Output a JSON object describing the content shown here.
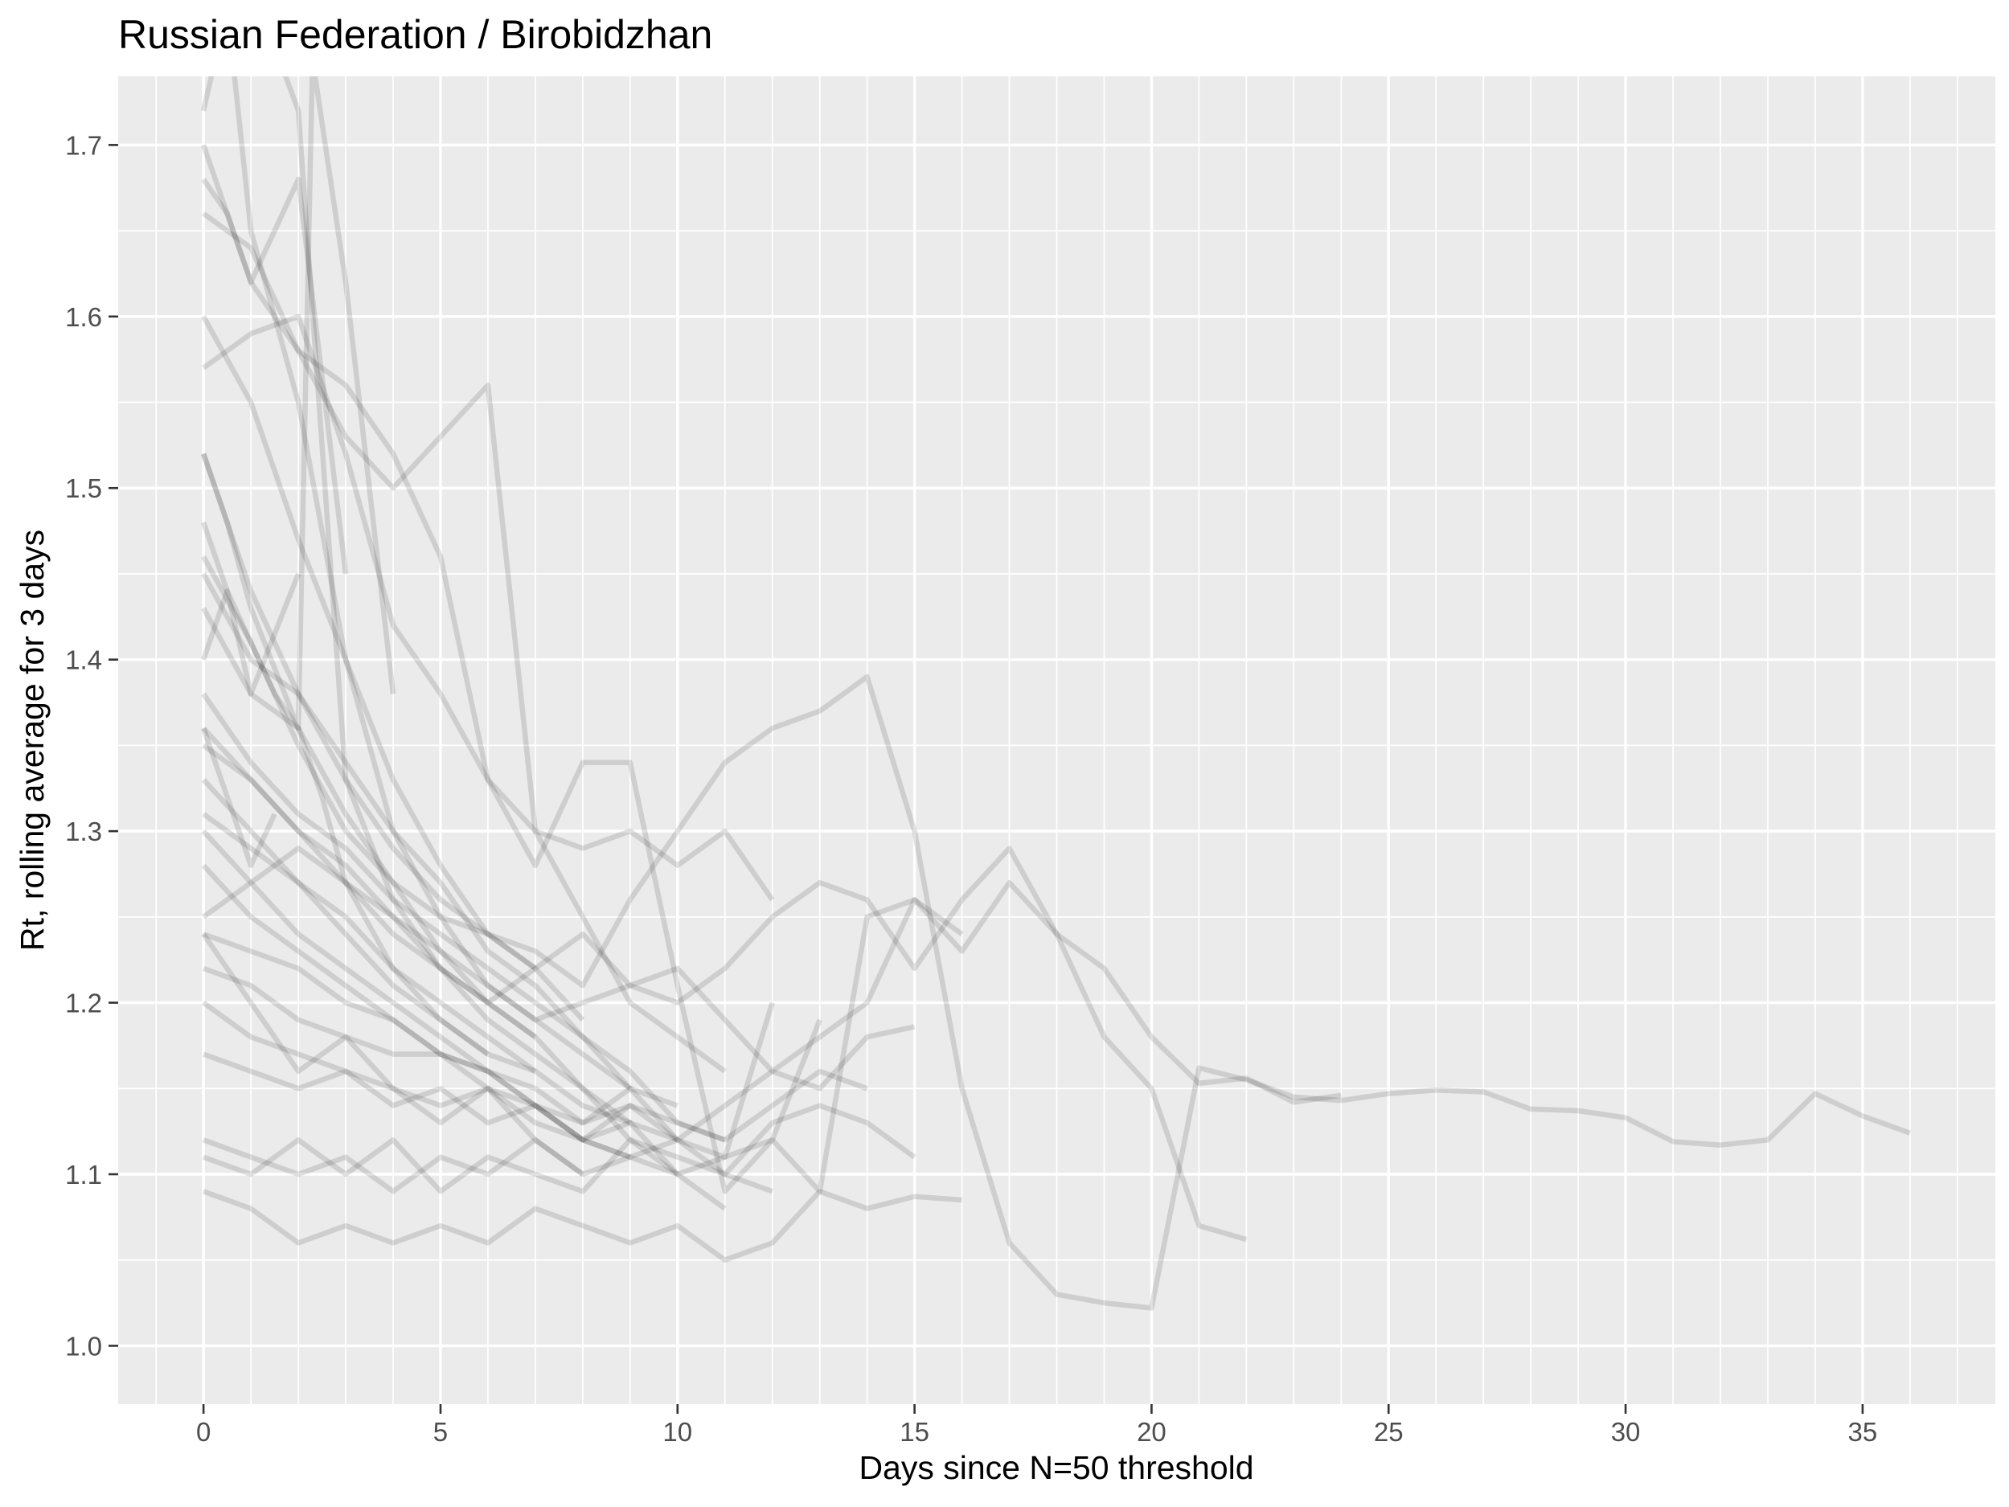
{
  "chart_data": {
    "type": "line",
    "title": "Russian Federation / Birobidzhan",
    "xlabel": "Days since N=50 threshold",
    "ylabel": "Rt, rolling average for 3 days",
    "xlim": [
      -1.8,
      37.8
    ],
    "ylim": [
      0.966,
      1.74
    ],
    "x_ticks": [
      0,
      5,
      10,
      15,
      20,
      25,
      30,
      35
    ],
    "y_ticks": [
      1.0,
      1.1,
      1.2,
      1.3,
      1.4,
      1.5,
      1.6,
      1.7
    ],
    "grid": true,
    "legend": "none",
    "line_color": "#000000",
    "panel_color": "#ebebeb",
    "series": [
      {
        "x": [
          0,
          1,
          2,
          3,
          4,
          5,
          6,
          7,
          8,
          9,
          10,
          11,
          12,
          13,
          14,
          15,
          16,
          17,
          18,
          19,
          20,
          21,
          22,
          23,
          24,
          25,
          26,
          27,
          28,
          29,
          30,
          31,
          32,
          33,
          34,
          35,
          36
        ],
        "y": [
          1.46,
          1.41,
          1.35,
          1.3,
          1.27,
          1.25,
          1.24,
          1.23,
          1.21,
          1.26,
          1.3,
          1.34,
          1.36,
          1.37,
          1.39,
          1.3,
          1.15,
          1.06,
          1.03,
          1.025,
          1.022,
          1.162,
          1.155,
          1.145,
          1.143,
          1.147,
          1.149,
          1.148,
          1.138,
          1.137,
          1.133,
          1.119,
          1.117,
          1.12,
          1.147,
          1.134,
          1.124
        ]
      },
      {
        "x": [
          0,
          1,
          2,
          3,
          4,
          5,
          6,
          7,
          8,
          9,
          10,
          11,
          12,
          13,
          14,
          15,
          16,
          17,
          18,
          19,
          20,
          21,
          22,
          23,
          24
        ],
        "y": [
          1.25,
          1.27,
          1.29,
          1.27,
          1.24,
          1.22,
          1.2,
          1.22,
          1.24,
          1.21,
          1.2,
          1.22,
          1.25,
          1.27,
          1.26,
          1.22,
          1.26,
          1.29,
          1.24,
          1.22,
          1.18,
          1.153,
          1.156,
          1.142,
          1.146
        ]
      },
      {
        "x": [
          0,
          1,
          2,
          3,
          4,
          5,
          6,
          7,
          8,
          9,
          10,
          11,
          12,
          13,
          14,
          15,
          16,
          17,
          18,
          19,
          20,
          21,
          22
        ],
        "y": [
          1.36,
          1.33,
          1.3,
          1.28,
          1.25,
          1.23,
          1.21,
          1.19,
          1.2,
          1.21,
          1.22,
          1.19,
          1.16,
          1.18,
          1.2,
          1.26,
          1.23,
          1.27,
          1.24,
          1.18,
          1.15,
          1.07,
          1.062
        ]
      },
      {
        "x": [
          0,
          1,
          2,
          3,
          4,
          5,
          6,
          7,
          8,
          9,
          10,
          11,
          12,
          13,
          14,
          15,
          16
        ],
        "y": [
          1.3,
          1.27,
          1.24,
          1.22,
          1.2,
          1.18,
          1.16,
          1.14,
          1.12,
          1.13,
          1.1,
          1.11,
          1.12,
          1.09,
          1.25,
          1.26,
          1.24
        ]
      },
      {
        "x": [
          0,
          1,
          2,
          3,
          4,
          5,
          6,
          7,
          8,
          9,
          10,
          11,
          12,
          13,
          14,
          15
        ],
        "y": [
          1.22,
          1.21,
          1.19,
          1.18,
          1.17,
          1.17,
          1.16,
          1.14,
          1.13,
          1.15,
          1.12,
          1.14,
          1.16,
          1.15,
          1.18,
          1.186
        ]
      },
      {
        "x": [
          0,
          1,
          2,
          3,
          4,
          5,
          6,
          7,
          8,
          9,
          10,
          11,
          12,
          13,
          14,
          15,
          16
        ],
        "y": [
          1.09,
          1.08,
          1.06,
          1.07,
          1.06,
          1.07,
          1.06,
          1.08,
          1.07,
          1.06,
          1.07,
          1.05,
          1.06,
          1.09,
          1.08,
          1.087,
          1.085
        ]
      },
      {
        "x": [
          0,
          1,
          2,
          3,
          4,
          5,
          6,
          7,
          8,
          9,
          10,
          11,
          12,
          13,
          14,
          15
        ],
        "y": [
          1.12,
          1.11,
          1.1,
          1.11,
          1.09,
          1.11,
          1.1,
          1.12,
          1.1,
          1.11,
          1.12,
          1.1,
          1.13,
          1.14,
          1.13,
          1.11
        ]
      },
      {
        "x": [
          0,
          1,
          2,
          3,
          4,
          5,
          6,
          7,
          8,
          9,
          10,
          11,
          12,
          13,
          14
        ],
        "y": [
          1.17,
          1.16,
          1.15,
          1.16,
          1.14,
          1.15,
          1.13,
          1.14,
          1.12,
          1.14,
          1.13,
          1.12,
          1.14,
          1.16,
          1.15
        ]
      },
      {
        "x": [
          0,
          1,
          2,
          3,
          4,
          5,
          6,
          7,
          8,
          9,
          10,
          11,
          12,
          13
        ],
        "y": [
          1.7,
          1.62,
          1.58,
          1.56,
          1.52,
          1.46,
          1.33,
          1.28,
          1.34,
          1.34,
          1.21,
          1.09,
          1.12,
          1.19
        ]
      },
      {
        "x": [
          0,
          1,
          2,
          3,
          4,
          5,
          6,
          7,
          8,
          9,
          10,
          11,
          12
        ],
        "y": [
          1.57,
          1.59,
          1.6,
          1.52,
          1.42,
          1.38,
          1.33,
          1.3,
          1.29,
          1.3,
          1.28,
          1.3,
          1.26
        ]
      },
      {
        "x": [
          0,
          1,
          2,
          3,
          4,
          5,
          6,
          7,
          8,
          9,
          10,
          11,
          12
        ],
        "y": [
          1.43,
          1.38,
          1.36,
          1.31,
          1.27,
          1.23,
          1.2,
          1.18,
          1.15,
          1.12,
          1.11,
          1.1,
          1.09
        ]
      },
      {
        "x": [
          0,
          1,
          2,
          3,
          4,
          5,
          6,
          7,
          8,
          9,
          10,
          11,
          12
        ],
        "y": [
          1.24,
          1.23,
          1.22,
          1.2,
          1.19,
          1.17,
          1.16,
          1.15,
          1.13,
          1.14,
          1.12,
          1.11,
          1.2
        ]
      },
      {
        "x": [
          0,
          1,
          2,
          3,
          4,
          5,
          6,
          7,
          8,
          9,
          10,
          11
        ],
        "y": [
          1.66,
          1.64,
          1.58,
          1.53,
          1.5,
          1.53,
          1.56,
          1.3,
          1.25,
          1.2,
          1.18,
          1.16
        ]
      },
      {
        "x": [
          0,
          1,
          2,
          3,
          4,
          5,
          6,
          7,
          8,
          9,
          10,
          11
        ],
        "y": [
          1.38,
          1.34,
          1.31,
          1.29,
          1.26,
          1.24,
          1.22,
          1.2,
          1.18,
          1.16,
          1.13,
          1.12
        ]
      },
      {
        "x": [
          0,
          1,
          2,
          3,
          4,
          5,
          6,
          7,
          8,
          9,
          10,
          11
        ],
        "y": [
          1.2,
          1.18,
          1.17,
          1.16,
          1.15,
          1.14,
          1.15,
          1.13,
          1.12,
          1.11,
          1.1,
          1.08
        ]
      },
      {
        "x": [
          0,
          0.5,
          1,
          2,
          3,
          4,
          5,
          6,
          7,
          8,
          9,
          10
        ],
        "y": [
          1.72,
          1.78,
          1.65,
          1.55,
          1.4,
          1.3,
          1.25,
          1.21,
          1.19,
          1.17,
          1.15,
          1.14
        ]
      },
      {
        "x": [
          0,
          1,
          2,
          3,
          4,
          5,
          6,
          7,
          8,
          9,
          10
        ],
        "y": [
          1.31,
          1.29,
          1.27,
          1.24,
          1.21,
          1.19,
          1.17,
          1.16,
          1.14,
          1.13,
          1.12
        ]
      },
      {
        "x": [
          0,
          1,
          2,
          3,
          4,
          5,
          6,
          7,
          8,
          9,
          10
        ],
        "y": [
          1.11,
          1.1,
          1.12,
          1.1,
          1.12,
          1.09,
          1.11,
          1.1,
          1.09,
          1.12,
          1.1
        ]
      },
      {
        "x": [
          0,
          1,
          2,
          3,
          4,
          5,
          6,
          7,
          8,
          9
        ],
        "y": [
          1.45,
          1.4,
          1.38,
          1.34,
          1.3,
          1.27,
          1.23,
          1.21,
          1.18,
          1.15
        ]
      },
      {
        "x": [
          0,
          1,
          2,
          3,
          4,
          5,
          6,
          7,
          8,
          9
        ],
        "y": [
          1.35,
          1.33,
          1.3,
          1.27,
          1.25,
          1.22,
          1.19,
          1.17,
          1.15,
          1.13
        ]
      },
      {
        "x": [
          0,
          1,
          2,
          3,
          4,
          5,
          6,
          7,
          8,
          9
        ],
        "y": [
          1.28,
          1.25,
          1.23,
          1.21,
          1.19,
          1.17,
          1.15,
          1.14,
          1.12,
          1.11
        ]
      },
      {
        "x": [
          0,
          1,
          2,
          3,
          4,
          5,
          6,
          7,
          8
        ],
        "y": [
          1.6,
          1.55,
          1.47,
          1.4,
          1.33,
          1.28,
          1.24,
          1.22,
          1.19
        ]
      },
      {
        "x": [
          0,
          1,
          2,
          3,
          4,
          5,
          6,
          7,
          8
        ],
        "y": [
          1.24,
          1.2,
          1.16,
          1.18,
          1.15,
          1.13,
          1.15,
          1.12,
          1.1
        ]
      },
      {
        "x": [
          0,
          1,
          2,
          3,
          4,
          5,
          6,
          7
        ],
        "y": [
          1.52,
          1.44,
          1.38,
          1.33,
          1.29,
          1.26,
          1.24,
          1.22
        ]
      },
      {
        "x": [
          0,
          1,
          2,
          3,
          4,
          5,
          6,
          7
        ],
        "y": [
          1.33,
          1.3,
          1.27,
          1.25,
          1.22,
          1.2,
          1.18,
          1.16
        ]
      },
      {
        "x": [
          0,
          0.5,
          1,
          1.5,
          2,
          2.5,
          3,
          4,
          5,
          6
        ],
        "y": [
          1.48,
          1.44,
          1.41,
          1.38,
          1.36,
          1.32,
          1.27,
          1.22,
          1.19,
          1.17
        ]
      },
      {
        "x": [
          0,
          0.5,
          1,
          2,
          2.3,
          3,
          4
        ],
        "y": [
          1.52,
          1.48,
          1.43,
          1.36,
          1.75,
          1.62,
          1.38
        ]
      },
      {
        "x": [
          1.6,
          2,
          3,
          4,
          5,
          6,
          7
        ],
        "y": [
          1.75,
          1.72,
          1.33,
          1.26,
          1.22,
          1.2,
          1.18
        ]
      },
      {
        "x": [
          0,
          0.5,
          1,
          2,
          3
        ],
        "y": [
          1.68,
          1.66,
          1.62,
          1.68,
          1.45
        ]
      },
      {
        "x": [
          0,
          0.5,
          1,
          2
        ],
        "y": [
          1.4,
          1.44,
          1.38,
          1.45
        ]
      },
      {
        "x": [
          0,
          0.5,
          1,
          1.5
        ],
        "y": [
          1.36,
          1.32,
          1.28,
          1.31
        ]
      }
    ]
  }
}
